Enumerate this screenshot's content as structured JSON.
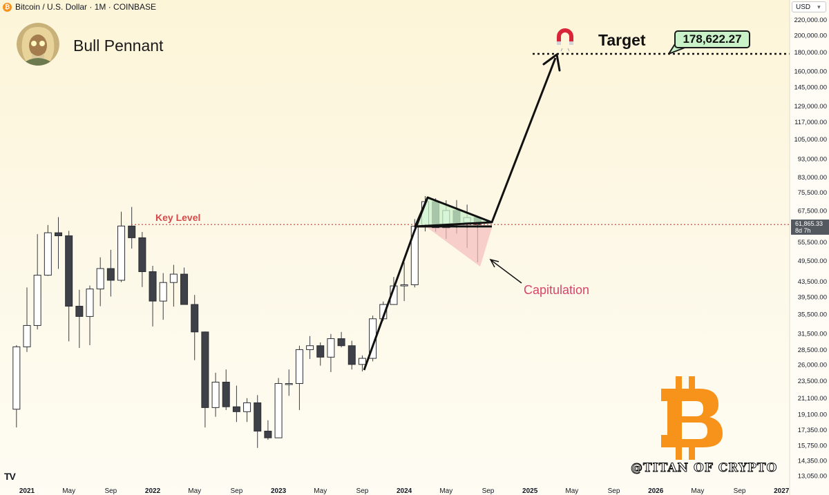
{
  "header": {
    "symbol_title": "Bitcoin / U.S. Dollar · 1M · COINBASE",
    "currency": "USD",
    "btc_icon": "bitcoin-icon"
  },
  "annotations": {
    "pattern_title": "Bull Pennant",
    "target_label": "Target",
    "target_value": "178,622.27",
    "key_level_label": "Key Level",
    "capitulation_label": "Capitulation",
    "watermark": "@TITAN OF CRYPTO",
    "magnet_icon": "magnet-icon",
    "bitcoin_logo": "bitcoin-logo"
  },
  "price_label": {
    "value": "61,865.33",
    "countdown": "8d 7h"
  },
  "tv_logo": "TV",
  "colors": {
    "bull_candle": "#ffffff",
    "bear_candle": "#3f4148",
    "key_level": "#d24a4a",
    "pennant_fill": "#c9f2c9",
    "capitulation_fill": "#f4bcbc",
    "btc_orange": "#f7931a"
  },
  "chart_data": {
    "type": "candlestick",
    "timeframe": "1M",
    "y_scale": "log",
    "ylim": [
      12500,
      240000
    ],
    "y_ticks": [
      "220,000.00",
      "200,000.00",
      "180,000.00",
      "160,000.00",
      "145,000.00",
      "129,000.00",
      "117,000.00",
      "105,000.00",
      "93,000.00",
      "83,000.00",
      "75,500.00",
      "67,500.00",
      "55,500.00",
      "49,500.00",
      "43,500.00",
      "39,500.00",
      "35,500.00",
      "31,500.00",
      "28,500.00",
      "26,000.00",
      "23,500.00",
      "21,100.00",
      "19,100.00",
      "17,350.00",
      "15,750.00",
      "14,350.00",
      "13,050.00"
    ],
    "x_ticks": [
      "2021",
      "May",
      "Sep",
      "2022",
      "May",
      "Sep",
      "2023",
      "May",
      "Sep",
      "2024",
      "May",
      "Sep",
      "2025",
      "May",
      "Sep",
      "2026",
      "May",
      "Sep",
      "2027"
    ],
    "candles": [
      {
        "month": "2020-12",
        "o": 19700,
        "h": 29300,
        "l": 17600,
        "c": 29000
      },
      {
        "month": "2021-01",
        "o": 29000,
        "h": 41900,
        "l": 28100,
        "c": 33100
      },
      {
        "month": "2021-02",
        "o": 33100,
        "h": 58300,
        "l": 32300,
        "c": 45200
      },
      {
        "month": "2021-03",
        "o": 45200,
        "h": 61700,
        "l": 45000,
        "c": 58800
      },
      {
        "month": "2021-04",
        "o": 58800,
        "h": 64800,
        "l": 47000,
        "c": 57700
      },
      {
        "month": "2021-05",
        "o": 57700,
        "h": 59500,
        "l": 30000,
        "c": 37300
      },
      {
        "month": "2021-06",
        "o": 37300,
        "h": 41300,
        "l": 28800,
        "c": 35000
      },
      {
        "month": "2021-07",
        "o": 35000,
        "h": 42400,
        "l": 29300,
        "c": 41500
      },
      {
        "month": "2021-08",
        "o": 41500,
        "h": 50500,
        "l": 37300,
        "c": 47100
      },
      {
        "month": "2021-09",
        "o": 47100,
        "h": 52900,
        "l": 39600,
        "c": 43800
      },
      {
        "month": "2021-10",
        "o": 43800,
        "h": 67000,
        "l": 43300,
        "c": 61300
      },
      {
        "month": "2021-11",
        "o": 61300,
        "h": 69000,
        "l": 53300,
        "c": 57000
      },
      {
        "month": "2021-12",
        "o": 57000,
        "h": 59100,
        "l": 42000,
        "c": 46200
      },
      {
        "month": "2022-01",
        "o": 46200,
        "h": 47900,
        "l": 32900,
        "c": 38500
      },
      {
        "month": "2022-02",
        "o": 38500,
        "h": 45800,
        "l": 34300,
        "c": 43200
      },
      {
        "month": "2022-03",
        "o": 43200,
        "h": 48200,
        "l": 37200,
        "c": 45500
      },
      {
        "month": "2022-04",
        "o": 45500,
        "h": 47400,
        "l": 37700,
        "c": 37700
      },
      {
        "month": "2022-05",
        "o": 37700,
        "h": 40000,
        "l": 26700,
        "c": 31800
      },
      {
        "month": "2022-06",
        "o": 31800,
        "h": 31900,
        "l": 17600,
        "c": 19900
      },
      {
        "month": "2022-07",
        "o": 19900,
        "h": 24700,
        "l": 18800,
        "c": 23300
      },
      {
        "month": "2022-08",
        "o": 23300,
        "h": 25200,
        "l": 19600,
        "c": 20000
      },
      {
        "month": "2022-09",
        "o": 20000,
        "h": 22800,
        "l": 18200,
        "c": 19400
      },
      {
        "month": "2022-10",
        "o": 19400,
        "h": 21100,
        "l": 18200,
        "c": 20500
      },
      {
        "month": "2022-11",
        "o": 20500,
        "h": 21500,
        "l": 15500,
        "c": 17200
      },
      {
        "month": "2022-12",
        "o": 17200,
        "h": 18400,
        "l": 16300,
        "c": 16500
      },
      {
        "month": "2023-01",
        "o": 16500,
        "h": 23900,
        "l": 16500,
        "c": 23100
      },
      {
        "month": "2023-02",
        "o": 23100,
        "h": 25200,
        "l": 21400,
        "c": 23100
      },
      {
        "month": "2023-03",
        "o": 23100,
        "h": 29200,
        "l": 19600,
        "c": 28500
      },
      {
        "month": "2023-04",
        "o": 28500,
        "h": 31000,
        "l": 26900,
        "c": 29200
      },
      {
        "month": "2023-05",
        "o": 29200,
        "h": 29800,
        "l": 25800,
        "c": 27200
      },
      {
        "month": "2023-06",
        "o": 27200,
        "h": 31400,
        "l": 24800,
        "c": 30500
      },
      {
        "month": "2023-07",
        "o": 30500,
        "h": 31800,
        "l": 28900,
        "c": 29200
      },
      {
        "month": "2023-08",
        "o": 29200,
        "h": 30100,
        "l": 25200,
        "c": 26000
      },
      {
        "month": "2023-09",
        "o": 26000,
        "h": 27500,
        "l": 24900,
        "c": 27000
      },
      {
        "month": "2023-10",
        "o": 27000,
        "h": 35200,
        "l": 26500,
        "c": 34500
      },
      {
        "month": "2023-11",
        "o": 34500,
        "h": 38400,
        "l": 34100,
        "c": 37700
      },
      {
        "month": "2023-12",
        "o": 37700,
        "h": 44700,
        "l": 37600,
        "c": 42300
      },
      {
        "month": "2024-01",
        "o": 42300,
        "h": 48900,
        "l": 38500,
        "c": 42600
      },
      {
        "month": "2024-02",
        "o": 42600,
        "h": 64000,
        "l": 41900,
        "c": 61200
      },
      {
        "month": "2024-03",
        "o": 61200,
        "h": 73800,
        "l": 59300,
        "c": 71300
      },
      {
        "month": "2024-04",
        "o": 71300,
        "h": 72800,
        "l": 59200,
        "c": 60600
      },
      {
        "month": "2024-05",
        "o": 60600,
        "h": 71900,
        "l": 56600,
        "c": 67500
      },
      {
        "month": "2024-06",
        "o": 67500,
        "h": 72000,
        "l": 58500,
        "c": 62700
      },
      {
        "month": "2024-07",
        "o": 62700,
        "h": 70000,
        "l": 53500,
        "c": 64600
      },
      {
        "month": "2024-08",
        "o": 64600,
        "h": 65200,
        "l": 49000,
        "c": 61865
      }
    ],
    "key_level": 61865.33,
    "target": 178622.27
  }
}
